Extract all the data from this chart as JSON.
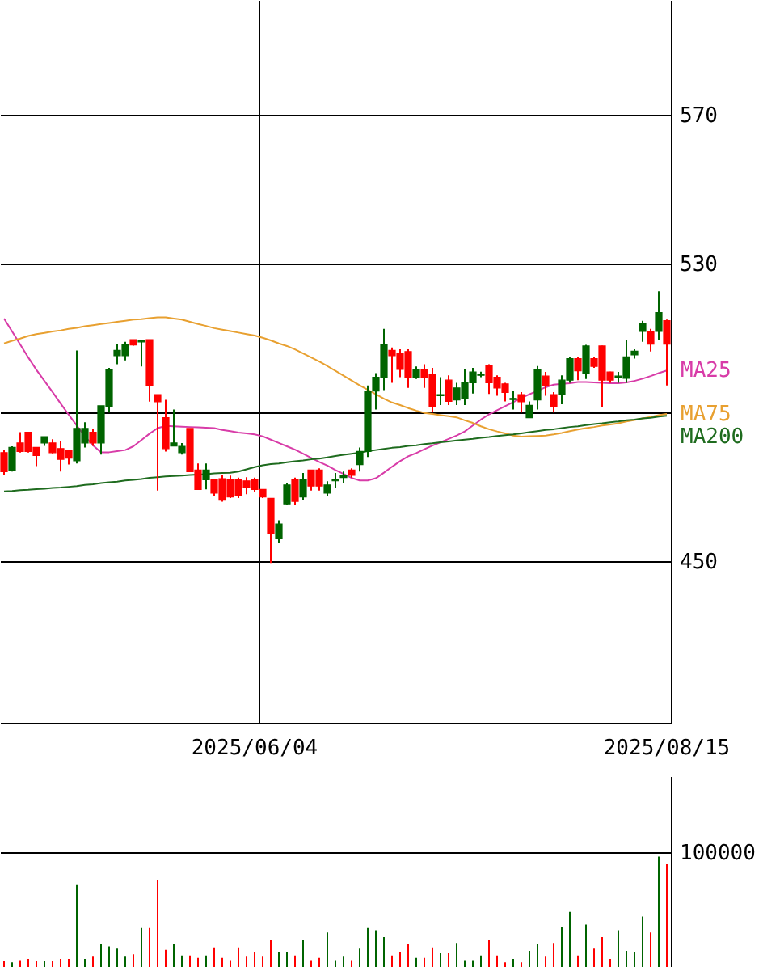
{
  "chart_data": [
    {
      "type": "candlestick",
      "categories": [
        null,
        null,
        null,
        null,
        null,
        null,
        null,
        null,
        null,
        null,
        null,
        null,
        null,
        null,
        null,
        null,
        null,
        null,
        null,
        null,
        null,
        null,
        null,
        null,
        null,
        null,
        null,
        null,
        null,
        null,
        null,
        "2025/06/04",
        null,
        null,
        null,
        null,
        null,
        null,
        null,
        null,
        null,
        null,
        null,
        null,
        null,
        null,
        null,
        null,
        null,
        null,
        null,
        null,
        null,
        null,
        null,
        null,
        null,
        null,
        null,
        null,
        null,
        null,
        null,
        null,
        null,
        null,
        null,
        null,
        null,
        null,
        null,
        null,
        null,
        null,
        null,
        null,
        null,
        null,
        null,
        null,
        null,
        null,
        "2025/08/15"
      ],
      "ohlc": [
        [
          479.2,
          479.9,
          473.1,
          474.1
        ],
        [
          474.5,
          480.9,
          474.1,
          480.6
        ],
        [
          481.8,
          484.7,
          479.2,
          479.5
        ],
        [
          484.7,
          484.7,
          479.2,
          479.5
        ],
        [
          480.6,
          480.6,
          475.6,
          478.4
        ],
        [
          481.8,
          483.5,
          481.0,
          483.5
        ],
        [
          481.8,
          482.8,
          479.0,
          479.2
        ],
        [
          480.3,
          482.4,
          474.1,
          477.4
        ],
        [
          479.9,
          479.9,
          476.0,
          477.7
        ],
        [
          477.0,
          506.7,
          476.3,
          485.7
        ],
        [
          481.8,
          487.4,
          480.6,
          485.7
        ],
        [
          484.7,
          485.7,
          481.0,
          481.8
        ],
        [
          481.8,
          491.8,
          478.7,
          491.8
        ],
        [
          491.5,
          502.0,
          490.0,
          501.6
        ],
        [
          505.3,
          508.4,
          503.0,
          506.7
        ],
        [
          505.3,
          509.0,
          504.0,
          508.4
        ],
        [
          509.6,
          509.6,
          508.0,
          508.2
        ],
        [
          509.0,
          509.6,
          502.4,
          509.3
        ],
        [
          509.6,
          509.6,
          492.9,
          497.3
        ],
        [
          494.8,
          494.8,
          469.0,
          492.9
        ],
        [
          488.6,
          493.4,
          479.5,
          480.3
        ],
        [
          481.0,
          490.8,
          480.9,
          481.8
        ],
        [
          479.2,
          481.8,
          478.7,
          480.9
        ],
        [
          485.7,
          485.7,
          474.1,
          474.1
        ],
        [
          474.5,
          476.3,
          469.3,
          469.3
        ],
        [
          471.9,
          476.3,
          469.3,
          474.5
        ],
        [
          471.9,
          471.9,
          467.6,
          468.3
        ],
        [
          472.2,
          473.1,
          466.0,
          466.4
        ],
        [
          471.9,
          473.0,
          467.0,
          467.3
        ],
        [
          471.9,
          472.5,
          467.0,
          467.6
        ],
        [
          471.6,
          472.6,
          468.0,
          469.8
        ],
        [
          471.9,
          472.5,
          468.7,
          469.3
        ],
        [
          469.3,
          469.3,
          467.0,
          467.3
        ],
        [
          466.9,
          467.0,
          449.5,
          457.4
        ],
        [
          456.0,
          461.0,
          455.0,
          460.0
        ],
        [
          465.4,
          471.0,
          465.0,
          470.5
        ],
        [
          471.9,
          472.5,
          465.0,
          466.1
        ],
        [
          467.3,
          473.7,
          466.4,
          471.9
        ],
        [
          474.5,
          474.5,
          469.0,
          470.2
        ],
        [
          474.5,
          475.0,
          469.0,
          470.2
        ],
        [
          468.3,
          471.5,
          467.6,
          470.5
        ],
        [
          471.6,
          473.7,
          469.8,
          472.0
        ],
        [
          472.5,
          474.1,
          471.0,
          473.1
        ],
        [
          474.5,
          475.0,
          472.5,
          473.1
        ],
        [
          476.0,
          480.6,
          474.1,
          479.5
        ],
        [
          479.5,
          497.3,
          478.0,
          495.8
        ],
        [
          495.8,
          500.6,
          490.8,
          499.5
        ],
        [
          499.5,
          512.5,
          496.0,
          508.2
        ],
        [
          506.7,
          507.5,
          498.0,
          505.3
        ],
        [
          506.0,
          507.0,
          499.5,
          501.6
        ],
        [
          506.4,
          507.0,
          496.6,
          499.5
        ],
        [
          499.5,
          502.4,
          499.0,
          501.6
        ],
        [
          501.6,
          503.0,
          496.6,
          499.5
        ],
        [
          500.2,
          502.0,
          490.0,
          491.5
        ],
        [
          494.5,
          499.5,
          492.0,
          494.8
        ],
        [
          498.7,
          500.0,
          492.0,
          493.0
        ],
        [
          493.4,
          498.0,
          492.0,
          496.6
        ],
        [
          493.7,
          501.6,
          492.0,
          498.0
        ],
        [
          498.0,
          502.0,
          495.1,
          500.9
        ],
        [
          500.0,
          501.0,
          499.5,
          500.3
        ],
        [
          502.6,
          503.0,
          495.0,
          498.0
        ],
        [
          499.5,
          500.0,
          494.5,
          496.6
        ],
        [
          497.7,
          498.0,
          493.0,
          495.4
        ],
        [
          493.5,
          495.8,
          490.8,
          493.8
        ],
        [
          494.8,
          495.5,
          490.0,
          492.9
        ],
        [
          488.6,
          493.0,
          488.6,
          491.9
        ],
        [
          493.4,
          502.5,
          490.8,
          501.6
        ],
        [
          499.8,
          500.9,
          494.5,
          497.3
        ],
        [
          494.8,
          495.5,
          490.0,
          491.5
        ],
        [
          494.8,
          500.0,
          492.2,
          498.7
        ],
        [
          498.7,
          505.0,
          498.0,
          504.5
        ],
        [
          504.5,
          505.0,
          498.7,
          501.2
        ],
        [
          500.6,
          508.2,
          499.0,
          507.9
        ],
        [
          504.5,
          505.0,
          502.0,
          502.4
        ],
        [
          507.9,
          508.0,
          491.5,
          498.7
        ],
        [
          500.9,
          501.0,
          498.0,
          498.7
        ],
        [
          499.5,
          500.9,
          498.0,
          499.8
        ],
        [
          499.2,
          509.6,
          498.0,
          505.0
        ],
        [
          505.5,
          507.0,
          504.5,
          506.5
        ],
        [
          511.8,
          514.7,
          509.0,
          514.0
        ],
        [
          511.8,
          512.5,
          506.4,
          508.4
        ],
        [
          511.8,
          522.6,
          509.6,
          516.9
        ],
        [
          514.7,
          515.0,
          497.3,
          508.4
        ]
      ],
      "colors": [
        "#ff0000",
        "#006400",
        "#ff0000",
        "#ff0000",
        "#ff0000",
        "#006400",
        "#ff0000",
        "#ff0000",
        "#ff0000",
        "#006400",
        "#006400",
        "#ff0000",
        "#006400",
        "#006400",
        "#006400",
        "#006400",
        "#ff0000",
        "#006400",
        "#ff0000",
        "#ff0000",
        "#ff0000",
        "#006400",
        "#006400",
        "#ff0000",
        "#ff0000",
        "#006400",
        "#ff0000",
        "#ff0000",
        "#ff0000",
        "#ff0000",
        "#ff0000",
        "#ff0000",
        "#ff0000",
        "#ff0000",
        "#006400",
        "#006400",
        "#ff0000",
        "#006400",
        "#ff0000",
        "#ff0000",
        "#006400",
        "#006400",
        "#006400",
        "#ff0000",
        "#006400",
        "#006400",
        "#006400",
        "#006400",
        "#ff0000",
        "#ff0000",
        "#ff0000",
        "#006400",
        "#ff0000",
        "#ff0000",
        "#006400",
        "#ff0000",
        "#006400",
        "#006400",
        "#006400",
        "#006400",
        "#ff0000",
        "#ff0000",
        "#ff0000",
        "#006400",
        "#ff0000",
        "#006400",
        "#006400",
        "#ff0000",
        "#ff0000",
        "#006400",
        "#006400",
        "#ff0000",
        "#006400",
        "#ff0000",
        "#ff0000",
        "#ff0000",
        "#006400",
        "#006400",
        "#006400",
        "#006400",
        "#ff0000",
        "#006400",
        "#ff0000"
      ],
      "series": [
        {
          "name": "MA25",
          "type": "line",
          "color": "#d83ca8",
          "values": [
            515.3,
            511.8,
            508.3,
            504.8,
            501.5,
            498.5,
            495.5,
            492.4,
            489.4,
            486.5,
            483.6,
            481.2,
            479.3,
            479.3,
            479.6,
            479.9,
            480.9,
            482.6,
            484.3,
            485.8,
            486.4,
            486.3,
            486.2,
            486.1,
            486.0,
            485.9,
            485.8,
            485.3,
            485.0,
            484.6,
            484.4,
            484.1,
            483.6,
            482.7,
            481.8,
            480.9,
            480.0,
            478.9,
            477.8,
            476.7,
            475.7,
            474.5,
            473.5,
            472.4,
            471.7,
            471.7,
            472.3,
            473.8,
            475.4,
            476.9,
            478.2,
            479.1,
            480.1,
            481.1,
            482.0,
            482.9,
            483.8,
            484.9,
            486.5,
            488.1,
            489.5,
            490.6,
            491.7,
            492.8,
            493.9,
            494.9,
            495.8,
            496.8,
            497.5,
            497.7,
            497.9,
            498.2,
            498.2,
            498.1,
            498.0,
            497.9,
            497.9,
            498.1,
            498.5,
            499.1,
            499.8,
            500.6,
            501.3
          ]
        },
        {
          "name": "MA75",
          "type": "line",
          "color": "#e8a030",
          "values": [
            508.6,
            509.3,
            509.9,
            510.6,
            511.1,
            511.4,
            511.8,
            512.1,
            512.5,
            512.8,
            513.2,
            513.5,
            513.8,
            514.1,
            514.4,
            514.7,
            515.0,
            515.1,
            515.4,
            515.6,
            515.6,
            515.3,
            515.0,
            514.4,
            513.8,
            513.3,
            512.7,
            512.3,
            511.9,
            511.5,
            511.1,
            510.7,
            510.1,
            509.4,
            508.6,
            507.9,
            507.0,
            505.9,
            504.8,
            503.7,
            502.5,
            501.2,
            499.9,
            498.6,
            497.3,
            496.1,
            494.9,
            493.7,
            492.7,
            492.0,
            491.2,
            490.5,
            489.9,
            489.6,
            489.3,
            489.0,
            488.7,
            487.9,
            487.2,
            486.3,
            485.5,
            484.9,
            484.4,
            483.8,
            483.5,
            483.6,
            483.7,
            483.8,
            484.1,
            484.5,
            485.0,
            485.4,
            485.8,
            486.1,
            486.5,
            486.8,
            487.1,
            487.6,
            488.0,
            488.4,
            488.8,
            489.3,
            489.6
          ]
        },
        {
          "name": "MA200",
          "type": "line",
          "color": "#1e6b1e",
          "values": [
            468.8,
            468.9,
            469.1,
            469.2,
            469.4,
            469.5,
            469.7,
            469.8,
            470.0,
            470.2,
            470.5,
            470.7,
            471.0,
            471.2,
            471.4,
            471.7,
            471.9,
            472.1,
            472.4,
            472.6,
            472.8,
            472.9,
            473.0,
            473.2,
            473.3,
            473.4,
            473.6,
            473.7,
            473.8,
            474.1,
            474.7,
            475.3,
            475.8,
            476.1,
            476.3,
            476.6,
            476.9,
            477.1,
            477.4,
            477.6,
            477.9,
            478.3,
            478.6,
            478.9,
            479.2,
            479.6,
            479.9,
            480.2,
            480.5,
            480.7,
            481.0,
            481.2,
            481.5,
            481.7,
            482.0,
            482.2,
            482.5,
            482.7,
            482.9,
            483.2,
            483.4,
            483.7,
            483.9,
            484.1,
            484.4,
            484.7,
            485.0,
            485.3,
            485.5,
            485.8,
            486.1,
            486.3,
            486.6,
            486.9,
            487.1,
            487.4,
            487.6,
            487.9,
            488.1,
            488.4,
            488.6,
            488.9,
            489.1
          ]
        }
      ],
      "ylim": [
        406.5,
        601
      ],
      "yticks": [
        450,
        {
          "value": 490,
          "label": null
        },
        530,
        570
      ],
      "grid": true
    },
    {
      "type": "bar",
      "tick_labels": "y",
      "grid": "y",
      "categories": [
        null,
        null,
        null,
        null,
        null,
        null,
        null,
        null,
        null,
        null,
        null,
        null,
        null,
        null,
        null,
        null,
        null,
        null,
        null,
        null,
        null,
        null,
        null,
        null,
        null,
        null,
        null,
        null,
        null,
        null,
        null,
        "2025/06/04",
        null,
        null,
        null,
        null,
        null,
        null,
        null,
        null,
        null,
        null,
        null,
        null,
        null,
        null,
        null,
        null,
        null,
        null,
        null,
        null,
        null,
        null,
        null,
        null,
        null,
        null,
        null,
        null,
        null,
        null,
        null,
        null,
        null,
        null,
        null,
        null,
        null,
        null,
        null,
        null,
        null,
        null,
        null,
        null,
        null,
        null,
        null,
        null,
        null,
        null,
        "2025/08/15"
      ],
      "values": [
        5000,
        4000,
        6000,
        7000,
        5000,
        5000,
        5000,
        7000,
        7000,
        72000,
        7000,
        9000,
        20000,
        18000,
        16000,
        9000,
        11000,
        34000,
        34000,
        76000,
        15000,
        20000,
        10000,
        10000,
        8000,
        10000,
        17000,
        8000,
        6000,
        17000,
        9000,
        13000,
        9000,
        24000,
        13000,
        13000,
        10000,
        24000,
        6000,
        8000,
        30000,
        6000,
        9000,
        6000,
        16000,
        34000,
        32000,
        26000,
        10000,
        13000,
        20000,
        8000,
        8000,
        17000,
        12000,
        12000,
        21000,
        6000,
        6000,
        10000,
        24000,
        10000,
        4000,
        7000,
        4000,
        14000,
        20000,
        9000,
        21000,
        35000,
        48000,
        10000,
        37000,
        16000,
        26000,
        7000,
        32000,
        14000,
        13000,
        44000,
        30000,
        96000,
        90000
      ],
      "colors": [
        "#ff0000",
        "#006400",
        "#ff0000",
        "#ff0000",
        "#ff0000",
        "#006400",
        "#ff0000",
        "#ff0000",
        "#ff0000",
        "#006400",
        "#006400",
        "#ff0000",
        "#006400",
        "#006400",
        "#006400",
        "#006400",
        "#ff0000",
        "#006400",
        "#ff0000",
        "#ff0000",
        "#ff0000",
        "#006400",
        "#006400",
        "#ff0000",
        "#ff0000",
        "#006400",
        "#ff0000",
        "#ff0000",
        "#ff0000",
        "#ff0000",
        "#ff0000",
        "#ff0000",
        "#ff0000",
        "#ff0000",
        "#006400",
        "#006400",
        "#ff0000",
        "#006400",
        "#ff0000",
        "#ff0000",
        "#006400",
        "#006400",
        "#006400",
        "#ff0000",
        "#006400",
        "#006400",
        "#006400",
        "#006400",
        "#ff0000",
        "#ff0000",
        "#ff0000",
        "#006400",
        "#ff0000",
        "#ff0000",
        "#006400",
        "#ff0000",
        "#006400",
        "#006400",
        "#006400",
        "#006400",
        "#ff0000",
        "#ff0000",
        "#ff0000",
        "#006400",
        "#ff0000",
        "#006400",
        "#006400",
        "#ff0000",
        "#ff0000",
        "#006400",
        "#006400",
        "#ff0000",
        "#006400",
        "#ff0000",
        "#ff0000",
        "#ff0000",
        "#006400",
        "#006400",
        "#006400",
        "#006400",
        "#ff0000",
        "#006400",
        "#ff0000"
      ],
      "ylim": [
        0,
        166000
      ],
      "yticks": [
        100000
      ]
    }
  ]
}
